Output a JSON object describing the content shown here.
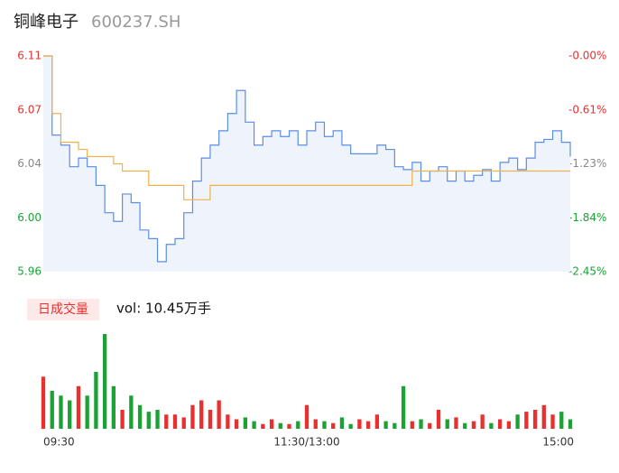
{
  "chart_data": {
    "type": "intraday",
    "title": "铜峰电子",
    "subtitle": "600237.SH",
    "volume_label": "日成交量",
    "volume_text": "vol: 10.45万手",
    "x": [
      0,
      4,
      8,
      12,
      16,
      20,
      24,
      28,
      32,
      36,
      40,
      44,
      48,
      52,
      56,
      60,
      64,
      68,
      72,
      76,
      80,
      84,
      88,
      92,
      96,
      100,
      104,
      108,
      112,
      116,
      120,
      124,
      128,
      132,
      136,
      140,
      144,
      148,
      152,
      156,
      160,
      164,
      168,
      172,
      176,
      180,
      184,
      188,
      192,
      196,
      200,
      204,
      208,
      212,
      216,
      220,
      224,
      228,
      232,
      236,
      240
    ],
    "xlim": [
      0,
      240
    ],
    "xticks": [
      {
        "value": 0,
        "label": "09:30"
      },
      {
        "value": 120,
        "label": "11:30/13:00"
      },
      {
        "value": 240,
        "label": "15:00"
      }
    ],
    "ylim": [
      5.96,
      6.11
    ],
    "yticks": [
      5.96,
      {
        "value": 5.9975,
        "label": "6.00"
      },
      {
        "value": 6.035,
        "label": "6.04"
      },
      {
        "value": 6.0725,
        "label": "6.07"
      },
      6.11
    ],
    "y2lim": [
      -2.45,
      0
    ],
    "y2ticks": [
      {
        "value": -2.45,
        "label": "-2.45%"
      },
      {
        "value": -1.8375,
        "label": "-1.84%"
      },
      {
        "value": -1.225,
        "label": "-1.23%"
      },
      {
        "value": -0.6125,
        "label": "-0.61%"
      },
      {
        "value": 0,
        "label": "-0.00%"
      }
    ],
    "up_color": "#e8312f",
    "down_color": "#1aa334",
    "flat_color": "#888888",
    "series": [
      {
        "name": "price",
        "color": "#5b8ee6",
        "values": [
          6.11,
          6.055,
          6.048,
          6.033,
          6.039,
          6.033,
          6.02,
          6.001,
          5.995,
          6.014,
          6.008,
          5.989,
          5.983,
          5.967,
          5.979,
          5.983,
          6.001,
          6.023,
          6.039,
          6.048,
          6.058,
          6.07,
          6.086,
          6.064,
          6.048,
          6.054,
          6.058,
          6.054,
          6.058,
          6.048,
          6.058,
          6.064,
          6.054,
          6.058,
          6.048,
          6.042,
          6.042,
          6.042,
          6.048,
          6.045,
          6.033,
          6.031,
          6.036,
          6.023,
          6.03,
          6.033,
          6.023,
          6.03,
          6.023,
          6.027,
          6.031,
          6.023,
          6.036,
          6.039,
          6.031,
          6.039,
          6.05,
          6.052,
          6.058,
          6.05,
          6.04
        ]
      },
      {
        "name": "average",
        "color": "#f0b24a",
        "values": [
          6.11,
          6.07,
          6.05,
          6.05,
          6.045,
          6.04,
          6.04,
          6.04,
          6.035,
          6.03,
          6.03,
          6.03,
          6.02,
          6.02,
          6.02,
          6.02,
          6.01,
          6.01,
          6.01,
          6.02,
          6.02,
          6.02,
          6.02,
          6.02,
          6.02,
          6.02,
          6.02,
          6.02,
          6.02,
          6.02,
          6.02,
          6.02,
          6.02,
          6.02,
          6.02,
          6.02,
          6.02,
          6.02,
          6.02,
          6.02,
          6.02,
          6.02,
          6.03,
          6.03,
          6.03,
          6.03,
          6.03,
          6.03,
          6.03,
          6.03,
          6.03,
          6.03,
          6.03,
          6.03,
          6.03,
          6.03,
          6.03,
          6.03,
          6.03,
          6.03,
          6.03
        ]
      }
    ],
    "volume": [
      55,
      40,
      35,
      30,
      45,
      35,
      60,
      100,
      45,
      20,
      35,
      25,
      18,
      20,
      15,
      15,
      12,
      25,
      30,
      20,
      30,
      15,
      10,
      12,
      8,
      5,
      10,
      6,
      5,
      8,
      25,
      10,
      8,
      6,
      12,
      5,
      10,
      8,
      15,
      8,
      6,
      45,
      8,
      10,
      6,
      20,
      10,
      12,
      6,
      8,
      15,
      6,
      10,
      8,
      15,
      18,
      20,
      25,
      15,
      18,
      10
    ]
  }
}
